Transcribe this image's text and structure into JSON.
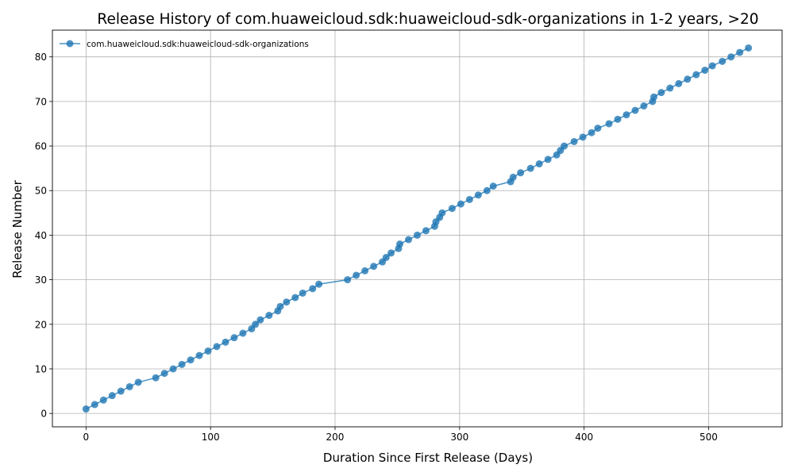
{
  "chart_data": {
    "type": "line",
    "title": "Release History of com.huaweicloud.sdk:huaweicloud-sdk-organizations in 1-2 years, >20",
    "xlabel": "Duration Since First Release (Days)",
    "ylabel": "Release Number",
    "xlim": [
      -27,
      559
    ],
    "ylim": [
      -3,
      86
    ],
    "xticks": [
      0,
      100,
      200,
      300,
      400,
      500
    ],
    "yticks": [
      0,
      10,
      20,
      30,
      40,
      50,
      60,
      70,
      80
    ],
    "grid": true,
    "legend_position": "top-left",
    "colors": {
      "series": "#1f77b4"
    },
    "series": [
      {
        "name": "com.huaweicloud.sdk:huaweicloud-sdk-organizations",
        "marker": "circle",
        "x": [
          0,
          7,
          14,
          21,
          28,
          35,
          42,
          56,
          63,
          70,
          77,
          84,
          91,
          98,
          105,
          112,
          119,
          126,
          133,
          136,
          140,
          147,
          154,
          156,
          161,
          168,
          174,
          182,
          187,
          210,
          217,
          224,
          231,
          238,
          241,
          245,
          251,
          252,
          259,
          266,
          273,
          280,
          281,
          284,
          286,
          294,
          301,
          308,
          315,
          322,
          327,
          341,
          343,
          349,
          357,
          364,
          371,
          378,
          381,
          384,
          392,
          399,
          406,
          411,
          420,
          427,
          434,
          441,
          448,
          455,
          456,
          462,
          469,
          476,
          483,
          490,
          497,
          503,
          511,
          518,
          525,
          532
        ],
        "y": [
          1,
          2,
          3,
          4,
          5,
          6,
          7,
          8,
          9,
          10,
          11,
          12,
          13,
          14,
          15,
          16,
          17,
          18,
          19,
          20,
          21,
          22,
          23,
          24,
          25,
          26,
          27,
          28,
          29,
          30,
          31,
          32,
          33,
          34,
          35,
          36,
          37,
          38,
          39,
          40,
          41,
          42,
          43,
          44,
          45,
          46,
          47,
          48,
          49,
          50,
          51,
          52,
          53,
          54,
          55,
          56,
          57,
          58,
          59,
          60,
          61,
          62,
          63,
          64,
          65,
          66,
          67,
          68,
          69,
          70,
          71,
          72,
          73,
          74,
          75,
          76,
          77,
          78,
          79,
          80,
          81,
          82
        ]
      }
    ]
  }
}
